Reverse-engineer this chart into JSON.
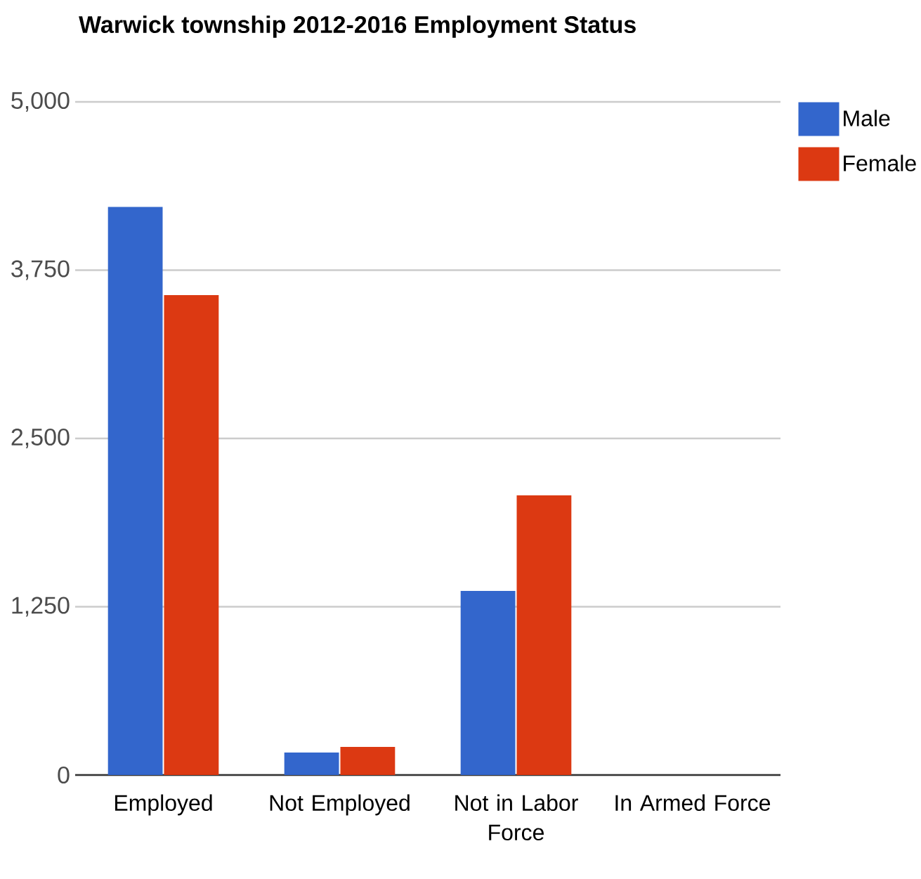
{
  "chart_data": {
    "type": "bar",
    "title": "Warwick township 2012-2016 Employment Status",
    "categories": [
      "Employed",
      "Not Employed",
      "Not in Labor Force",
      "In Armed Force"
    ],
    "series": [
      {
        "name": "Male",
        "color": "#3366cc",
        "values": [
          4220,
          167,
          1367,
          0
        ]
      },
      {
        "name": "Female",
        "color": "#dc3912",
        "values": [
          3565,
          209,
          2077,
          0
        ]
      }
    ],
    "ylim": [
      0,
      5000
    ],
    "yticks": [
      0,
      {
        "value": 1250,
        "label": "1,250"
      },
      {
        "value": 2500,
        "label": "2,500"
      },
      {
        "value": 3750,
        "label": "3,750"
      },
      {
        "value": 5000,
        "label": "5,000"
      }
    ],
    "grid": "y",
    "legend": "top right"
  }
}
